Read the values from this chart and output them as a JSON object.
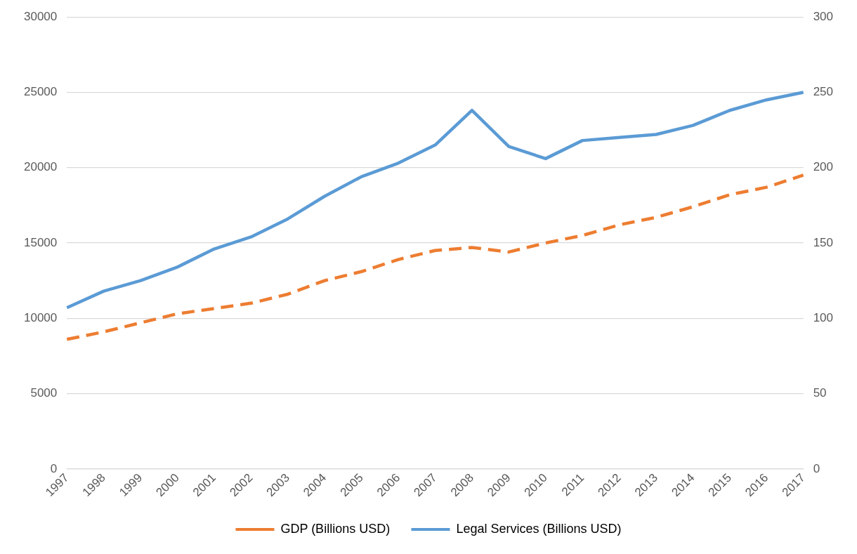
{
  "chart_data": {
    "type": "line",
    "categories": [
      "1997",
      "1998",
      "1999",
      "2000",
      "2001",
      "2002",
      "2003",
      "2004",
      "2005",
      "2006",
      "2007",
      "2008",
      "2009",
      "2010",
      "2011",
      "2012",
      "2013",
      "2014",
      "2015",
      "2016",
      "2017"
    ],
    "series": [
      {
        "name": "GDP (Billions USD)",
        "color": "#ed7d31",
        "line_style": "dashed",
        "values": [
          8600,
          9100,
          9700,
          10300,
          10650,
          11000,
          11600,
          12500,
          13100,
          13900,
          14500,
          14700,
          14400,
          15000,
          15500,
          16200,
          16700,
          17400,
          18200,
          18700,
          19500
        ]
      },
      {
        "name": "Legal Services (Billions USD)",
        "color": "#5b9bd5",
        "line_style": "solid",
        "axis": "y2",
        "values": [
          107,
          118,
          125,
          134,
          146,
          154,
          166,
          181,
          194,
          203,
          215,
          238,
          214,
          206,
          218,
          220,
          222,
          228,
          238,
          245,
          250
        ]
      }
    ],
    "ylim": [
      0,
      30000
    ],
    "yticks": [
      0,
      5000,
      10000,
      15000,
      20000,
      25000,
      30000
    ],
    "y2lim": [
      0,
      300
    ],
    "y2ticks": [
      0,
      50,
      100,
      150,
      200,
      250,
      300
    ],
    "grid": "y",
    "legend": "bottom",
    "marker": "none"
  }
}
